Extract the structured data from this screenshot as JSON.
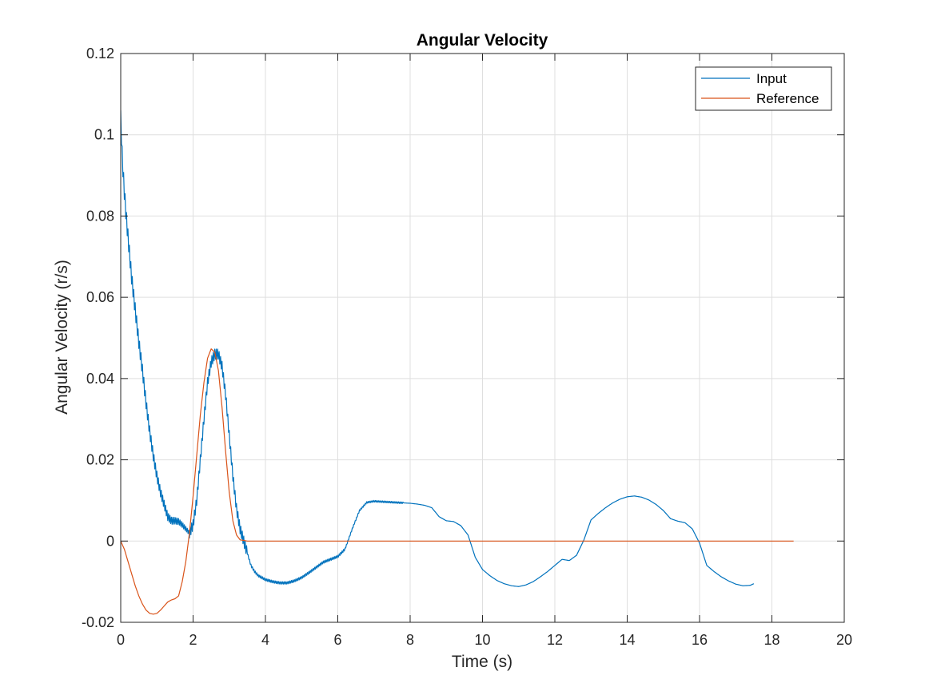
{
  "chart_data": {
    "type": "line",
    "title": "Angular Velocity",
    "xlabel": "Time (s)",
    "ylabel": "Angular Velocity (r/s)",
    "xlim": [
      0,
      20
    ],
    "ylim": [
      -0.02,
      0.12
    ],
    "xticks": [
      0,
      2,
      4,
      6,
      8,
      10,
      12,
      14,
      16,
      18,
      20
    ],
    "yticks": [
      -0.02,
      0,
      0.02,
      0.04,
      0.06,
      0.08,
      0.1,
      0.12
    ],
    "xtick_labels": [
      "0",
      "2",
      "4",
      "6",
      "8",
      "10",
      "12",
      "14",
      "16",
      "18",
      "20"
    ],
    "ytick_labels": [
      "-0.02",
      "0",
      "0.02",
      "0.04",
      "0.06",
      "0.08",
      "0.1",
      "0.12"
    ],
    "grid": true,
    "legend_position": "top-right",
    "series": [
      {
        "name": "Input",
        "color": "#0072BD",
        "x": [
          0,
          0.05,
          0.1,
          0.15,
          0.2,
          0.25,
          0.3,
          0.4,
          0.5,
          0.6,
          0.7,
          0.8,
          0.9,
          1.0,
          1.1,
          1.2,
          1.3,
          1.4,
          1.5,
          1.6,
          1.7,
          1.8,
          1.9,
          2.0,
          2.1,
          2.2,
          2.3,
          2.4,
          2.5,
          2.6,
          2.7,
          2.8,
          2.9,
          3.0,
          3.1,
          3.2,
          3.3,
          3.4,
          3.5,
          3.6,
          3.7,
          3.8,
          3.9,
          4.0,
          4.2,
          4.4,
          4.6,
          4.8,
          5.0,
          5.2,
          5.4,
          5.6,
          5.8,
          6.0,
          6.2,
          6.4,
          6.6,
          6.8,
          7.0,
          7.2,
          7.4,
          7.6,
          7.8,
          8.0,
          8.2,
          8.4,
          8.6,
          8.8,
          9.0,
          9.2,
          9.4,
          9.6,
          9.8,
          10.0,
          10.2,
          10.4,
          10.6,
          10.8,
          11.0,
          11.2,
          11.4,
          11.6,
          11.8,
          12.0,
          12.2,
          12.4,
          12.6,
          12.8,
          13.0,
          13.2,
          13.4,
          13.6,
          13.8,
          14.0,
          14.2,
          14.4,
          14.6,
          14.8,
          15.0,
          15.2,
          15.4,
          15.6,
          15.8,
          16.0,
          16.2,
          16.4,
          16.6,
          16.8,
          17.0,
          17.2,
          17.4,
          17.5
        ],
        "values": [
          0.104,
          0.093,
          0.086,
          0.08,
          0.075,
          0.07,
          0.065,
          0.057,
          0.049,
          0.042,
          0.034,
          0.027,
          0.021,
          0.016,
          0.012,
          0.009,
          0.006,
          0.005,
          0.005,
          0.0048,
          0.004,
          0.003,
          0.002,
          0.004,
          0.01,
          0.02,
          0.03,
          0.039,
          0.044,
          0.046,
          0.046,
          0.043,
          0.036,
          0.026,
          0.016,
          0.008,
          0.003,
          0.0,
          -0.003,
          -0.006,
          -0.0075,
          -0.0085,
          -0.009,
          -0.0095,
          -0.01,
          -0.0103,
          -0.0103,
          -0.0098,
          -0.009,
          -0.0078,
          -0.0065,
          -0.0052,
          -0.0045,
          -0.0038,
          -0.002,
          0.003,
          0.0075,
          0.0095,
          0.0098,
          0.0097,
          0.0096,
          0.0095,
          0.0094,
          0.0093,
          0.0091,
          0.0088,
          0.0082,
          0.006,
          0.005,
          0.0048,
          0.0038,
          0.0015,
          -0.004,
          -0.007,
          -0.0085,
          -0.0097,
          -0.0105,
          -0.011,
          -0.0112,
          -0.0108,
          -0.01,
          -0.0088,
          -0.0075,
          -0.006,
          -0.0045,
          -0.0048,
          -0.0035,
          0.0002,
          0.0052,
          0.0068,
          0.0082,
          0.0094,
          0.0103,
          0.0109,
          0.0111,
          0.0108,
          0.0101,
          0.009,
          0.0075,
          0.0055,
          0.0049,
          0.0045,
          0.003,
          -0.0005,
          -0.006,
          -0.0075,
          -0.0088,
          -0.0098,
          -0.0106,
          -0.011,
          -0.0109,
          -0.0105
        ],
        "ripple": [
          [
            0,
            1.9,
            0.004
          ],
          [
            1.9,
            3.5,
            0.0025
          ],
          [
            3.5,
            6.2,
            0.0006
          ],
          [
            6.2,
            7.8,
            0.0004
          ]
        ]
      },
      {
        "name": "Reference",
        "color": "#D95319",
        "x": [
          0,
          0.1,
          0.2,
          0.3,
          0.4,
          0.5,
          0.6,
          0.7,
          0.8,
          0.9,
          1.0,
          1.1,
          1.2,
          1.3,
          1.4,
          1.5,
          1.6,
          1.7,
          1.8,
          1.9,
          2.0,
          2.1,
          2.2,
          2.3,
          2.4,
          2.5,
          2.6,
          2.7,
          2.8,
          2.9,
          3.0,
          3.1,
          3.2,
          3.3,
          3.5,
          4.0,
          6.0,
          8.0,
          10.0,
          12.0,
          14.0,
          16.0,
          18.0,
          18.6
        ],
        "values": [
          0,
          -0.002,
          -0.005,
          -0.008,
          -0.011,
          -0.0135,
          -0.0155,
          -0.017,
          -0.0178,
          -0.018,
          -0.0178,
          -0.017,
          -0.016,
          -0.015,
          -0.0145,
          -0.0142,
          -0.0135,
          -0.01,
          -0.005,
          0.002,
          0.011,
          0.021,
          0.031,
          0.039,
          0.045,
          0.0473,
          0.0465,
          0.042,
          0.033,
          0.022,
          0.012,
          0.005,
          0.0015,
          0.0003,
          0,
          0,
          0,
          0,
          0,
          0,
          0,
          0,
          0,
          0
        ]
      }
    ]
  }
}
